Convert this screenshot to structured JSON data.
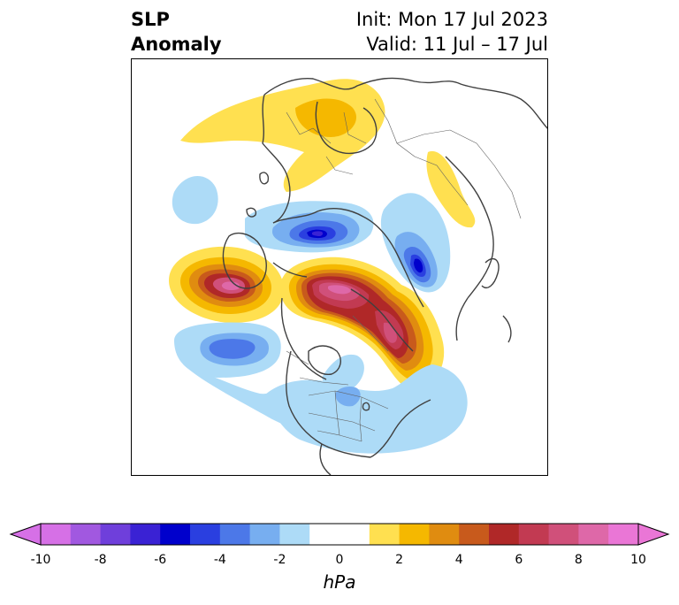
{
  "title": {
    "left_line1": "SLP",
    "left_line2": "Anomaly",
    "right_line1": "Init: Mon 17 Jul 2023",
    "right_line2": "Valid: 11 Jul – 17 Jul"
  },
  "colorbar": {
    "unit": "hPa",
    "vmin": -10,
    "vmax": 10,
    "ticks": [
      "-10",
      "-8",
      "-6",
      "-4",
      "-2",
      "0",
      "2",
      "4",
      "6",
      "8",
      "10"
    ],
    "tick_values": [
      -10,
      -8,
      -6,
      -4,
      -2,
      0,
      2,
      4,
      6,
      8,
      10
    ],
    "extend": "both",
    "colors": [
      "#d670e6",
      "#a158e0",
      "#6f3fdb",
      "#3a22d4",
      "#0000cc",
      "#2a3fe0",
      "#4c78e8",
      "#77aef0",
      "#addbf7",
      "#ffffff",
      "#ffffff",
      "#ffe050",
      "#f5b800",
      "#e08c10",
      "#c85a1c",
      "#b02828",
      "#c23a52",
      "#d0507a",
      "#de68a8",
      "#ea76d6"
    ]
  },
  "map": {
    "projection": "north-polar-stereographic",
    "field": "sea-level-pressure-anomaly",
    "features": [
      "positive-anomaly-north-pacific",
      "positive-anomaly-arctic-canada-greenland",
      "negative-anomaly-siberia",
      "negative-anomaly-scandinavia",
      "negative-anomaly-northeast-pacific",
      "positive-anomaly-europe-russia"
    ]
  }
}
